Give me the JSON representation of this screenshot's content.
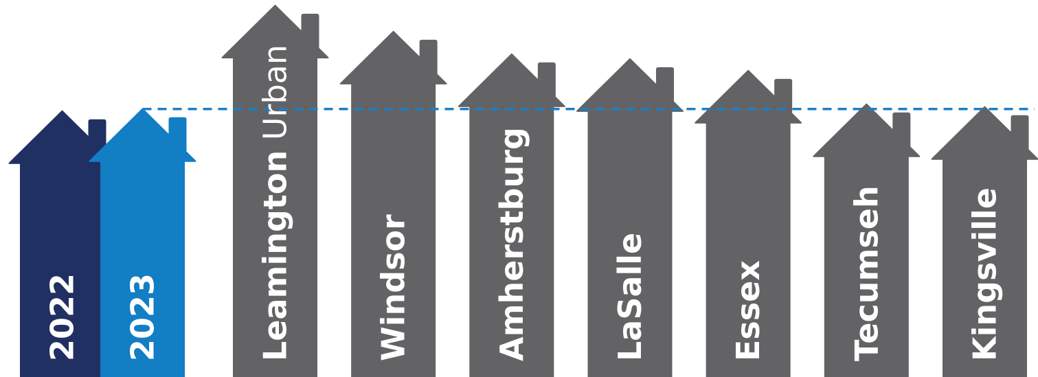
{
  "chart_data": {
    "type": "bar",
    "title": "",
    "xlabel": "",
    "ylabel": "",
    "ylim": [
      0,
      550
    ],
    "grid": false,
    "legend": "none",
    "reference_line": {
      "value": 391,
      "style": "dashed",
      "color": "#1a7fc8"
    },
    "categories": [
      {
        "label": "2022",
        "value": 388,
        "color": "#213063"
      },
      {
        "label": "2023",
        "value": 391,
        "color": "#127ec4"
      },
      {
        "label_bold": "Leamington",
        "label_light": " Urban",
        "value": 542,
        "color": "#636365"
      },
      {
        "label": "Windsor",
        "value": 504,
        "color": "#636365"
      },
      {
        "label": "Amherstburg",
        "value": 471,
        "color": "#636365"
      },
      {
        "label": "LaSalle",
        "value": 464,
        "color": "#636365"
      },
      {
        "label": "Essex",
        "value": 447,
        "color": "#636365"
      },
      {
        "label": "Tecumseh",
        "value": 398,
        "color": "#636365"
      },
      {
        "label": "Kingsville",
        "value": 394,
        "color": "#636365"
      }
    ]
  }
}
